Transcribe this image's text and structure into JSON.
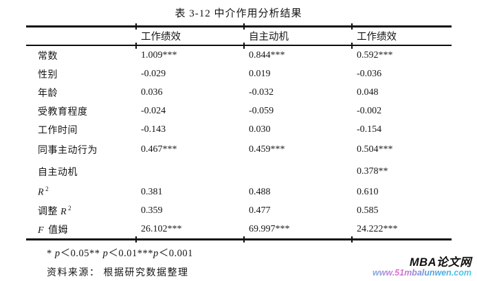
{
  "title": "表 3-12 中介作用分析结果",
  "table": {
    "header": [
      "工作绩效",
      "自主动机",
      "工作绩效"
    ],
    "rows": [
      {
        "prefix": "常数",
        "math": "",
        "sup": "",
        "suffix": "",
        "values": [
          "1.009***",
          "0.844***",
          "0.592***"
        ]
      },
      {
        "prefix": "性别",
        "math": "",
        "sup": "",
        "suffix": "",
        "values": [
          "-0.029",
          "0.019",
          "-0.036"
        ]
      },
      {
        "prefix": "年龄",
        "math": "",
        "sup": "",
        "suffix": "",
        "values": [
          "0.036",
          "-0.032",
          "0.048"
        ]
      },
      {
        "prefix": "受教育程度",
        "math": "",
        "sup": "",
        "suffix": "",
        "values": [
          "-0.024",
          "-0.059",
          "-0.002"
        ]
      },
      {
        "prefix": "工作时间",
        "math": "",
        "sup": "",
        "suffix": "",
        "values": [
          "-0.143",
          "0.030",
          "-0.154"
        ]
      },
      {
        "prefix": "同事主动行为",
        "math": "",
        "sup": "",
        "suffix": "",
        "values": [
          "0.467***",
          "0.459***",
          "0.504***"
        ]
      },
      {
        "prefix": "自主动机",
        "math": "",
        "sup": "",
        "suffix": "",
        "values": [
          "",
          "",
          "0.378**"
        ]
      },
      {
        "prefix": "",
        "math": "R",
        "sup": "2",
        "suffix": "",
        "values": [
          "0.381",
          "0.488",
          "0.610"
        ]
      },
      {
        "prefix": "调整 ",
        "math": "R",
        "sup": "2",
        "suffix": "",
        "values": [
          "0.359",
          "0.477",
          "0.585"
        ]
      },
      {
        "prefix": "",
        "math": "F",
        "sup": "",
        "suffix": " 值姆",
        "values": [
          "26.102***",
          "69.997***",
          "24.222***"
        ]
      }
    ]
  },
  "footnote": {
    "parts": [
      "* ",
      "p",
      "＜0.05** ",
      "p",
      "＜0.01***",
      "p",
      "＜0.001"
    ]
  },
  "source": "资料来源： 根据研究数据整理",
  "watermark": {
    "brand": "MBA论文网",
    "url": "www.51mbalunwen.com",
    "brand_color": "#101010",
    "url_colors": [
      "#6fb0e6",
      "#e86bcf",
      "#4f9fe0",
      "#3fd0e8"
    ]
  }
}
